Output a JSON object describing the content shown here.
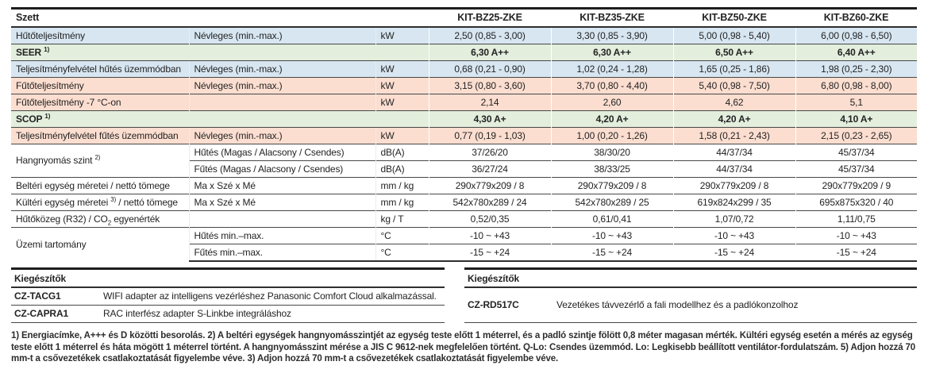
{
  "spec": {
    "corner_label": "Szett",
    "models": [
      "KIT-BZ25-ZKE",
      "KIT-BZ35-ZKE",
      "KIT-BZ50-ZKE",
      "KIT-BZ60-ZKE"
    ],
    "rows": [
      {
        "bg": "blue",
        "label_parts": [
          [
            "t",
            "Hűtőteljesítmény"
          ]
        ],
        "sub": "Névleges (min.-max.)",
        "unit": "kW",
        "values": [
          "2,50 (0,85 - 3,00)",
          "3,30 (0,85 - 3,90)",
          "5,00 (0,98 - 5,40)",
          "6,00 (0,98 - 6,50)"
        ]
      },
      {
        "bg": "green",
        "bold": true,
        "label_colspan": 3,
        "label_parts": [
          [
            "t",
            "SEER "
          ],
          [
            "sup",
            "1)"
          ]
        ],
        "values": [
          "6,30 A++",
          "6,30 A++",
          "6,50 A++",
          "6,40 A++"
        ]
      },
      {
        "bg": "blue",
        "label_parts": [
          [
            "t",
            "Teljesítményfelvétel hűtés üzemmódban"
          ]
        ],
        "sub": "Névleges (min.-max.)",
        "unit": "kW",
        "values": [
          "0,68 (0,21 - 0,90)",
          "1,02 (0,24 - 1,28)",
          "1,65 (0,25 - 1,86)",
          "1,98 (0,25 - 2,30)"
        ]
      },
      {
        "bg": "salmon",
        "label_parts": [
          [
            "t",
            "Fűtőteljesítmény"
          ]
        ],
        "sub": "Névleges (min.-max.)",
        "unit": "kW",
        "values": [
          "3,15 (0,80 - 3,60)",
          "3,70 (0,80 - 4,40)",
          "5,40 (0,98 - 7,50)",
          "6,80 (0,98 - 8,00)"
        ]
      },
      {
        "bg": "salmon",
        "label_parts": [
          [
            "t",
            "Fűtőteljesítmény -7 °C-on"
          ]
        ],
        "sub": "",
        "unit": "kW",
        "values": [
          "2,14",
          "2,60",
          "4,62",
          "5,1"
        ]
      },
      {
        "bg": "green",
        "bold": true,
        "label_colspan": 3,
        "label_parts": [
          [
            "t",
            "SCOP "
          ],
          [
            "sup",
            "1)"
          ]
        ],
        "values": [
          "4,30 A+",
          "4,20 A+",
          "4,20 A+",
          "4,10 A+"
        ]
      },
      {
        "bg": "salmon",
        "label_parts": [
          [
            "t",
            "Teljesítményfelvétel fűtés üzemmódban"
          ]
        ],
        "sub": "Névleges (min.-max.)",
        "unit": "kW",
        "values": [
          "0,77 (0,19 - 1,03)",
          "1,00 (0,20 - 1,26)",
          "1,58 (0,21 - 2,43)",
          "2,15 (0,23 - 2,65)"
        ]
      },
      {
        "bg": "white",
        "label_rowspan": 2,
        "label_parts": [
          [
            "t",
            "Hangnyomás szint "
          ],
          [
            "sup",
            "2)"
          ]
        ],
        "sub": "Hűtés (Magas / Alacsony / Csendes)",
        "unit": "dB(A)",
        "values": [
          "37/26/20",
          "38/30/20",
          "44/37/34",
          "45/37/34"
        ]
      },
      {
        "bg": "white",
        "skip_label": true,
        "sub": "Fűtés (Magas / Alacsony / Csendes)",
        "unit": "dB(A)",
        "values": [
          "36/27/24",
          "38/33/25",
          "44/37/34",
          "45/37/34"
        ]
      },
      {
        "bg": "white",
        "label_parts": [
          [
            "t",
            "Beltéri egység méretei / nettó tömege"
          ]
        ],
        "sub": "Ma x Szé x Mé",
        "unit": "mm / kg",
        "values": [
          "290x779x209 / 8",
          "290x779x209 / 8",
          "290x779x209 / 8",
          "290x779x209 / 9"
        ]
      },
      {
        "bg": "white",
        "label_parts": [
          [
            "t",
            "Kültéri egység méretei "
          ],
          [
            "sup",
            "3)"
          ],
          [
            "t",
            " / nettó tömege"
          ]
        ],
        "sub": "Ma x Szé x Mé",
        "unit": "mm / kg",
        "values": [
          "542x780x289 / 24",
          "542x780x289 / 25",
          "619x824x299 / 35",
          "695x875x320 / 40"
        ]
      },
      {
        "bg": "white",
        "label_parts": [
          [
            "t",
            "Hűtőközeg (R32) / CO"
          ],
          [
            "sub",
            "2"
          ],
          [
            "t",
            " egyenérték"
          ]
        ],
        "sub": "",
        "unit": "kg / T",
        "values": [
          "0,52/0,35",
          "0,61/0,41",
          "1,07/0,72",
          "1,11/0,75"
        ]
      },
      {
        "bg": "white",
        "label_rowspan": 2,
        "label_parts": [
          [
            "t",
            "Üzemi tartomány"
          ]
        ],
        "sub": "Hűtés min.–max.",
        "unit": "°C",
        "values": [
          "-10 ~ +43",
          "-10 ~ +43",
          "-10 ~ +43",
          "-10 ~ +43"
        ]
      },
      {
        "bg": "white",
        "skip_label": true,
        "sub": "Fűtés min.–max.",
        "unit": "°C",
        "values": [
          "-15 ~ +24",
          "-15 ~ +24",
          "-15 ~ +24",
          "-15 ~ +24"
        ]
      }
    ]
  },
  "accessories": {
    "left": {
      "header": "Kiegészítők",
      "items": [
        {
          "code": "CZ-TACG1",
          "desc": "WIFI adapter az intelligens vezérléshez Panasonic Comfort Cloud alkalmazással."
        },
        {
          "code": "CZ-CAPRA1",
          "desc": "RAC interfész adapter S-Linkbe integráláshoz"
        }
      ]
    },
    "right": {
      "header": "Kiegészítők",
      "items": [
        {
          "code": "CZ-RD517C",
          "desc": "Vezetékes távvezérlő a fali modellhez és a padlókonzolhoz"
        }
      ]
    }
  },
  "footnotes": "1) Energiacímke, A+++ és D közötti besorolás. 2) A beltéri egységek hangnyomásszintjét az egység teste előtt 1 méterrel, és a padló szintje fölött 0,8 méter magasan mérték. Kültéri egység esetén a mérés az egység teste előtt 1 méterrel és háta mögött 1 méterrel történt. A hangnyomásszint mérése a JIS C 9612-nek megfelelően történt. Q-Lo: Csendes üzemmód. Lo: Legkisebb beállított ventilátor-fordulatszám. 5) Adjon hozzá 70 mm-t a csővezetékek csatlakoztatását figyelembe véve. 3) Adjon hozzá 70 mm-t a csővezetékek csatlakoztatását figyelembe véve.",
  "colors": {
    "row_blue": "#d7e6f1",
    "row_green": "#e3eedd",
    "row_salmon": "#fcded0",
    "border_dark": "#474747"
  }
}
